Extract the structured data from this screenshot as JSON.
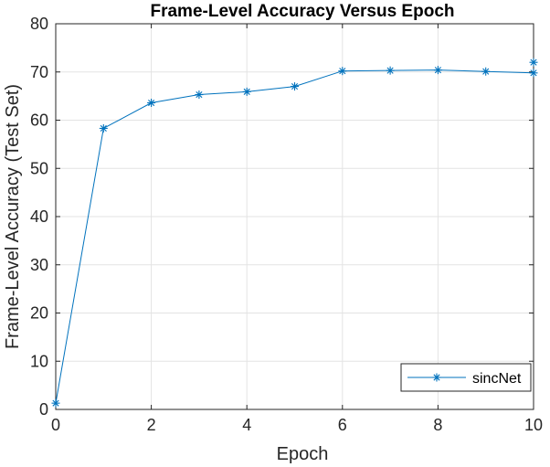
{
  "chart_data": {
    "type": "line",
    "title": "Frame-Level Accuracy Versus Epoch",
    "xlabel": "Epoch",
    "ylabel": "Frame-Level Accuracy (Test Set)",
    "xlim": [
      0,
      10
    ],
    "ylim": [
      0,
      80
    ],
    "xticks": [
      0,
      2,
      4,
      6,
      8,
      10
    ],
    "yticks": [
      0,
      10,
      20,
      30,
      40,
      50,
      60,
      70,
      80
    ],
    "grid": true,
    "legend_position": "bottom-right",
    "series": [
      {
        "name": "sincNet",
        "color": "#0072bd",
        "marker": "asterisk",
        "x": [
          0,
          1,
          2,
          3,
          4,
          5,
          6,
          7,
          8,
          9,
          10
        ],
        "values": [
          1.3,
          58.3,
          63.6,
          65.3,
          65.9,
          67.0,
          70.2,
          70.3,
          70.4,
          70.1,
          69.8
        ]
      }
    ],
    "extra_points": [
      {
        "x": 10,
        "y": 72.0,
        "color": "#0072bd",
        "marker": "asterisk"
      }
    ]
  }
}
